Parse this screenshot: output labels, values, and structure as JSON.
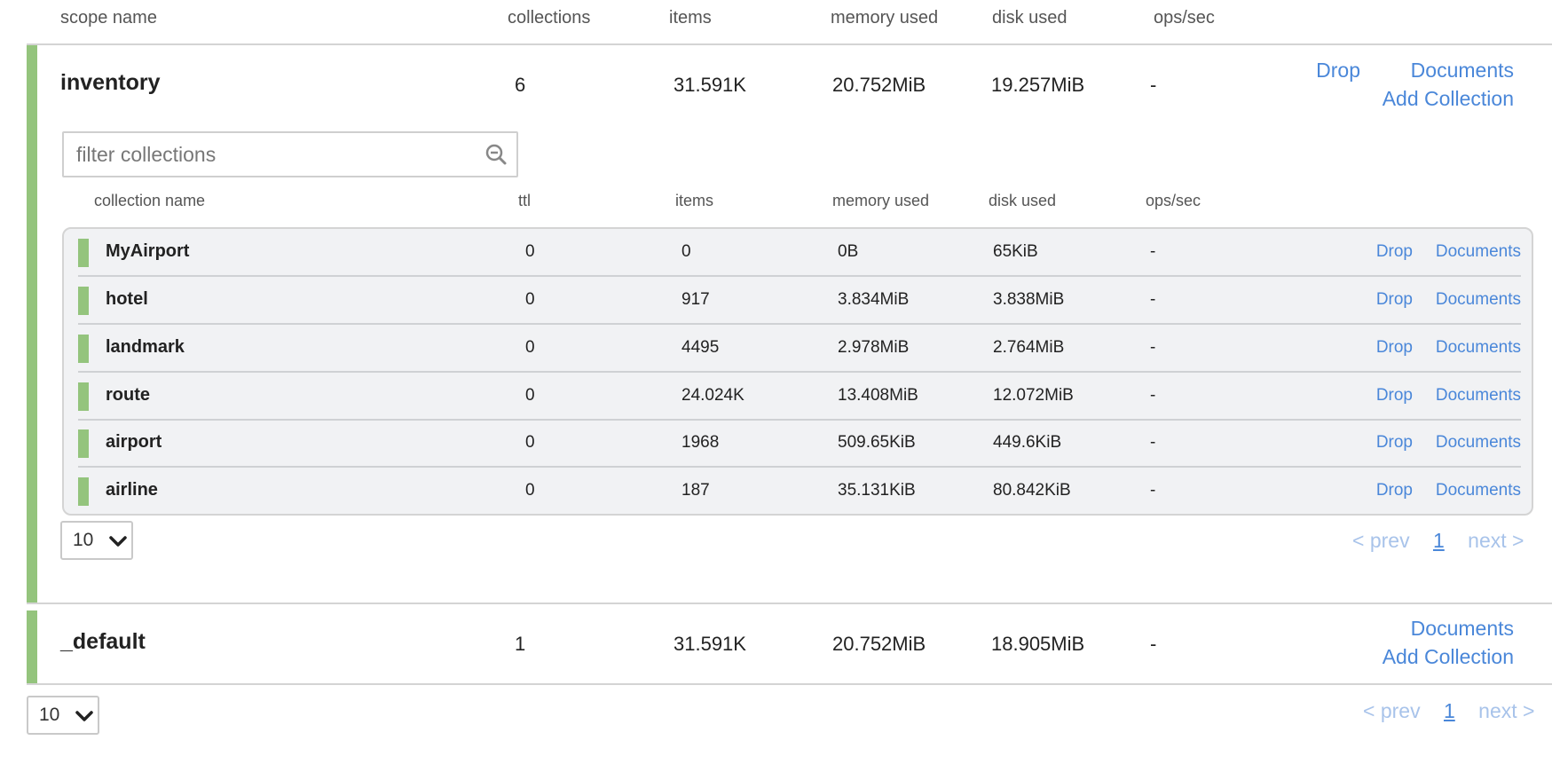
{
  "scope_table": {
    "headers": [
      "scope name",
      "collections",
      "items",
      "memory used",
      "disk used",
      "ops/sec"
    ]
  },
  "scopes": [
    {
      "name": "inventory",
      "collections": "6",
      "items": "31.591K",
      "memory_used": "20.752MiB",
      "disk_used": "19.257MiB",
      "ops_sec": "-",
      "drop_label": "Drop",
      "documents_label": "Documents",
      "add_collection_label": "Add Collection"
    },
    {
      "name": "_default",
      "collections": "1",
      "items": "31.591K",
      "memory_used": "20.752MiB",
      "disk_used": "18.905MiB",
      "ops_sec": "-",
      "documents_label": "Documents",
      "add_collection_label": "Add Collection"
    }
  ],
  "filter": {
    "placeholder": "filter collections"
  },
  "collection_table": {
    "headers": [
      "collection name",
      "ttl",
      "items",
      "memory used",
      "disk used",
      "ops/sec"
    ],
    "rows": [
      {
        "name": "MyAirport",
        "ttl": "0",
        "items": "0",
        "memory_used": "0B",
        "disk_used": "65KiB",
        "ops_sec": "-"
      },
      {
        "name": "hotel",
        "ttl": "0",
        "items": "917",
        "memory_used": "3.834MiB",
        "disk_used": "3.838MiB",
        "ops_sec": "-"
      },
      {
        "name": "landmark",
        "ttl": "0",
        "items": "4495",
        "memory_used": "2.978MiB",
        "disk_used": "2.764MiB",
        "ops_sec": "-"
      },
      {
        "name": "route",
        "ttl": "0",
        "items": "24.024K",
        "memory_used": "13.408MiB",
        "disk_used": "12.072MiB",
        "ops_sec": "-"
      },
      {
        "name": "airport",
        "ttl": "0",
        "items": "1968",
        "memory_used": "509.65KiB",
        "disk_used": "449.6KiB",
        "ops_sec": "-"
      },
      {
        "name": "airline",
        "ttl": "0",
        "items": "187",
        "memory_used": "35.131KiB",
        "disk_used": "80.842KiB",
        "ops_sec": "-"
      }
    ],
    "drop_label": "Drop",
    "documents_label": "Documents"
  },
  "collection_pagination": {
    "page_size": "10",
    "prev": "< prev",
    "page": "1",
    "next": "next >"
  },
  "scope_pagination": {
    "page_size": "10",
    "prev": "< prev",
    "page": "1",
    "next": "next >"
  },
  "colors": {
    "accent_green": "#94c47d",
    "link_blue": "#4a87d9",
    "link_disabled": "#a8c3ea"
  },
  "icons": {
    "filter": "search-icon",
    "select": "chevron-down-icon"
  }
}
